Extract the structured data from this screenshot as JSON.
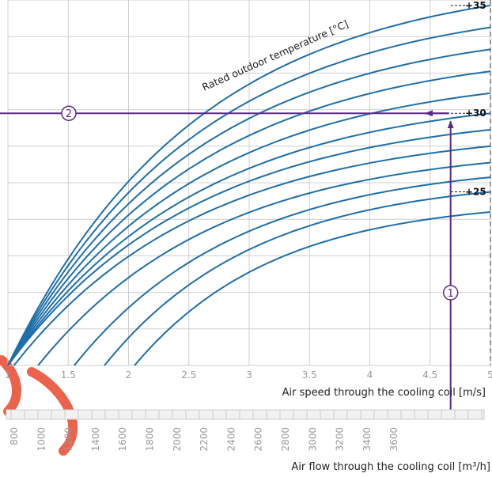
{
  "colors": {
    "curve": "#1f6fa8",
    "grid": "#cfcfcf",
    "guide": "#5b2a86",
    "flow_axis": "#cccccc",
    "watermark": "#e8472e"
  },
  "chart_data": {
    "type": "line",
    "curve_title": "Rated outdoor temperature [°C]",
    "x_axis": {
      "label": "Air  speed through the cooling coil [m/s]",
      "ticks": [
        "1",
        "1.5",
        "2",
        "2.5",
        "3",
        "3.5",
        "4",
        "4.5",
        "5"
      ],
      "range": [
        1,
        5
      ]
    },
    "flow_axis": {
      "label": "Air flow through the cooling coil [m³/h]",
      "ticks": [
        "800",
        "1000",
        "1200",
        "1400",
        "1600",
        "1800",
        "2000",
        "2200",
        "2400",
        "2600",
        "2800",
        "3000",
        "3200",
        "3400",
        "3600"
      ]
    },
    "grid": true,
    "curve_labels": [
      {
        "text": "+35",
        "series_index": 0
      },
      {
        "text": "+30",
        "series_index": 5
      },
      {
        "text": "+25",
        "series_index": 10
      }
    ],
    "series": [
      {
        "x_start": 1.0,
        "y_end": 0.985
      },
      {
        "x_start": 1.0,
        "y_end": 0.925
      },
      {
        "x_start": 1.0,
        "y_end": 0.865
      },
      {
        "x_start": 1.0,
        "y_end": 0.805
      },
      {
        "x_start": 1.0,
        "y_end": 0.745
      },
      {
        "x_start": 1.0,
        "y_end": 0.69
      },
      {
        "x_start": 1.0,
        "y_end": 0.645
      },
      {
        "x_start": 1.05,
        "y_end": 0.6
      },
      {
        "x_start": 1.25,
        "y_end": 0.555
      },
      {
        "x_start": 1.55,
        "y_end": 0.515
      },
      {
        "x_start": 1.8,
        "y_end": 0.475
      },
      {
        "x_start": 2.05,
        "y_end": 0.42
      }
    ],
    "guide": {
      "air_speed": 4.67,
      "markers": [
        "1",
        "2"
      ]
    }
  }
}
